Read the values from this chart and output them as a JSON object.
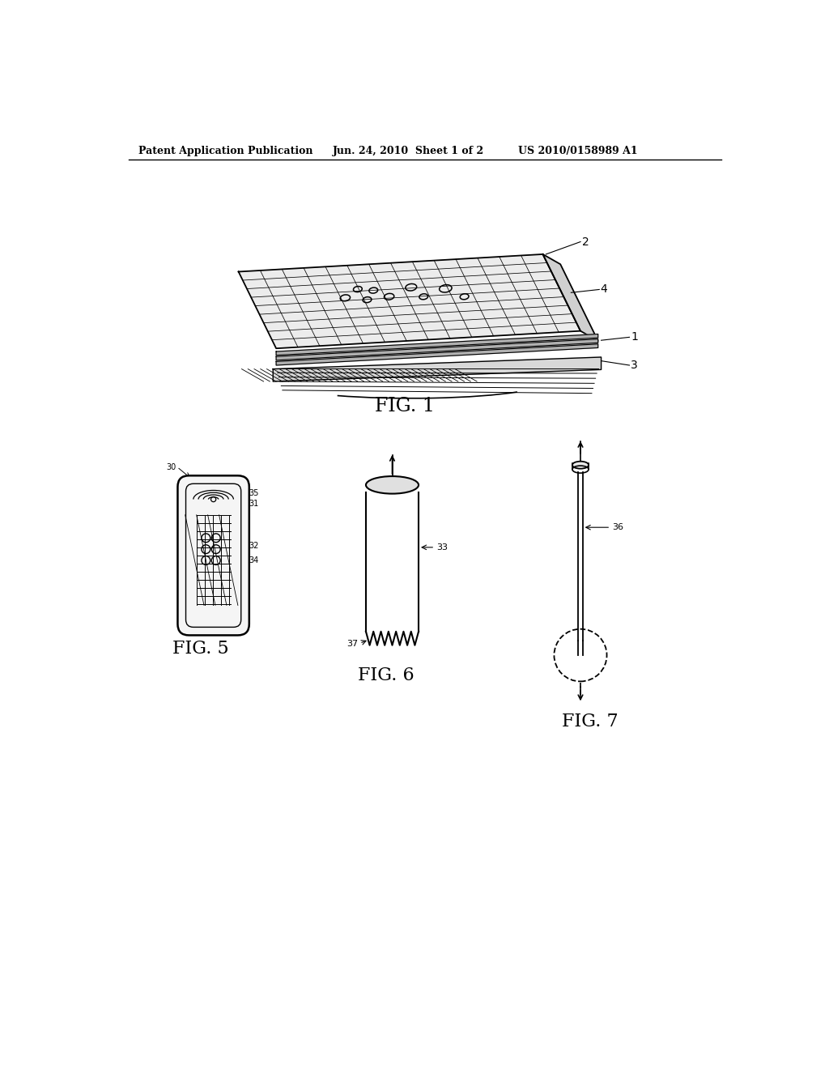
{
  "bg_color": "#ffffff",
  "header_left": "Patent Application Publication",
  "header_mid": "Jun. 24, 2010  Sheet 1 of 2",
  "header_right": "US 2010/0158989 A1",
  "fig1_label": "FIG. 1",
  "fig5_label": "FIG. 5",
  "fig6_label": "FIG. 6",
  "fig7_label": "FIG. 7",
  "line_color": "#000000"
}
